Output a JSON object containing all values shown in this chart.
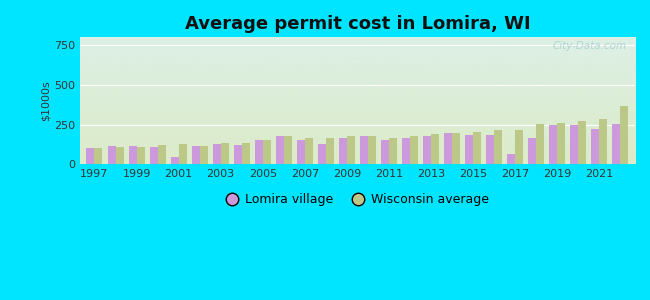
{
  "title": "Average permit cost in Lomira, WI",
  "ylabel": "$1000s",
  "background_outer": "#00e5ff",
  "background_inner_top": "#d8ede8",
  "background_inner_bottom": "#dce8cc",
  "years": [
    1997,
    1998,
    1999,
    2000,
    2001,
    2002,
    2003,
    2004,
    2005,
    2006,
    2007,
    2008,
    2009,
    2010,
    2011,
    2012,
    2013,
    2014,
    2015,
    2016,
    2017,
    2018,
    2019,
    2020,
    2021,
    2022
  ],
  "lomira": [
    100,
    115,
    115,
    110,
    45,
    115,
    130,
    120,
    155,
    175,
    155,
    125,
    165,
    175,
    155,
    165,
    175,
    195,
    185,
    185,
    65,
    165,
    245,
    250,
    220,
    255
  ],
  "wisconsin": [
    105,
    110,
    110,
    120,
    130,
    115,
    135,
    135,
    155,
    175,
    165,
    165,
    175,
    175,
    165,
    175,
    190,
    200,
    205,
    215,
    215,
    255,
    260,
    270,
    285,
    365
  ],
  "lomira_color": "#cc99dd",
  "wisconsin_color": "#bbc888",
  "ylim": [
    0,
    800
  ],
  "yticks": [
    0,
    250,
    500,
    750
  ],
  "bar_width": 0.38,
  "watermark": "City-Data.com"
}
